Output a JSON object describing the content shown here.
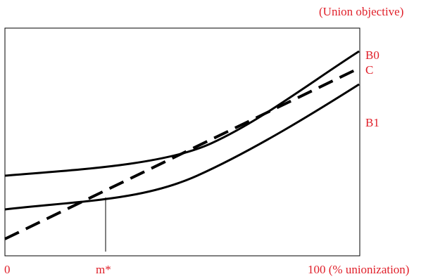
{
  "title": "(Union objective)",
  "curves": {
    "b0_label": "B0",
    "c_label": "C",
    "b1_label": "B1"
  },
  "axis": {
    "origin_label": "0",
    "mstar_label": "m*",
    "end_label": "100 (% unionization)"
  },
  "colors": {
    "label": "#e0202a",
    "line": "#000000"
  }
}
